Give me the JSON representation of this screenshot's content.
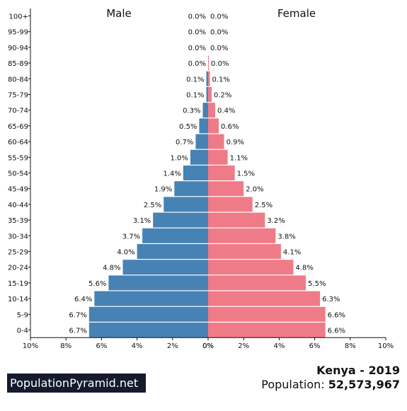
{
  "chart_data": {
    "type": "bar",
    "orientation": "horizontal-pyramid",
    "title_left": "Male",
    "title_right": "Female",
    "categories": [
      "100+",
      "95-99",
      "90-94",
      "85-89",
      "80-84",
      "75-79",
      "70-74",
      "65-69",
      "60-64",
      "55-59",
      "50-54",
      "45-49",
      "40-44",
      "35-39",
      "30-34",
      "25-29",
      "20-24",
      "15-19",
      "10-14",
      "5-9",
      "0-4"
    ],
    "series": [
      {
        "name": "Male",
        "values": [
          0.0,
          0.0,
          0.0,
          0.0,
          0.1,
          0.1,
          0.3,
          0.5,
          0.7,
          1.0,
          1.4,
          1.9,
          2.5,
          3.1,
          3.7,
          4.0,
          4.8,
          5.6,
          6.4,
          6.7,
          6.7
        ],
        "labels": [
          "0.0%",
          "0.0%",
          "0.0%",
          "0.0%",
          "0.1%",
          "0.1%",
          "0.3%",
          "0.5%",
          "0.7%",
          "1.0%",
          "1.4%",
          "1.9%",
          "2.5%",
          "3.1%",
          "3.7%",
          "4.0%",
          "4.8%",
          "5.6%",
          "6.4%",
          "6.7%",
          "6.7%"
        ],
        "color": "#4682b4"
      },
      {
        "name": "Female",
        "values": [
          0.0,
          0.0,
          0.0,
          0.04,
          0.1,
          0.2,
          0.4,
          0.6,
          0.9,
          1.1,
          1.5,
          2.0,
          2.5,
          3.2,
          3.8,
          4.1,
          4.8,
          5.5,
          6.3,
          6.6,
          6.6
        ],
        "labels": [
          "0.0%",
          "0.0%",
          "0.0%",
          "0.0%",
          "0.1%",
          "0.2%",
          "0.4%",
          "0.6%",
          "0.9%",
          "1.1%",
          "1.5%",
          "2.0%",
          "2.5%",
          "3.2%",
          "3.8%",
          "4.1%",
          "4.8%",
          "5.5%",
          "6.3%",
          "6.6%",
          "6.6%"
        ],
        "color": "#f07b88"
      }
    ],
    "xlim": [
      0,
      10
    ],
    "x_ticks_left": [
      "10%",
      "8%",
      "6%",
      "4%",
      "2%",
      "0%"
    ],
    "x_ticks_right": [
      "0%",
      "2%",
      "4%",
      "6%",
      "8%",
      "10%"
    ]
  },
  "brand": "PopulationPyramid.net",
  "country_year": "Kenya - 2019",
  "population_label": "Population: ",
  "population_value": "52,573,967"
}
